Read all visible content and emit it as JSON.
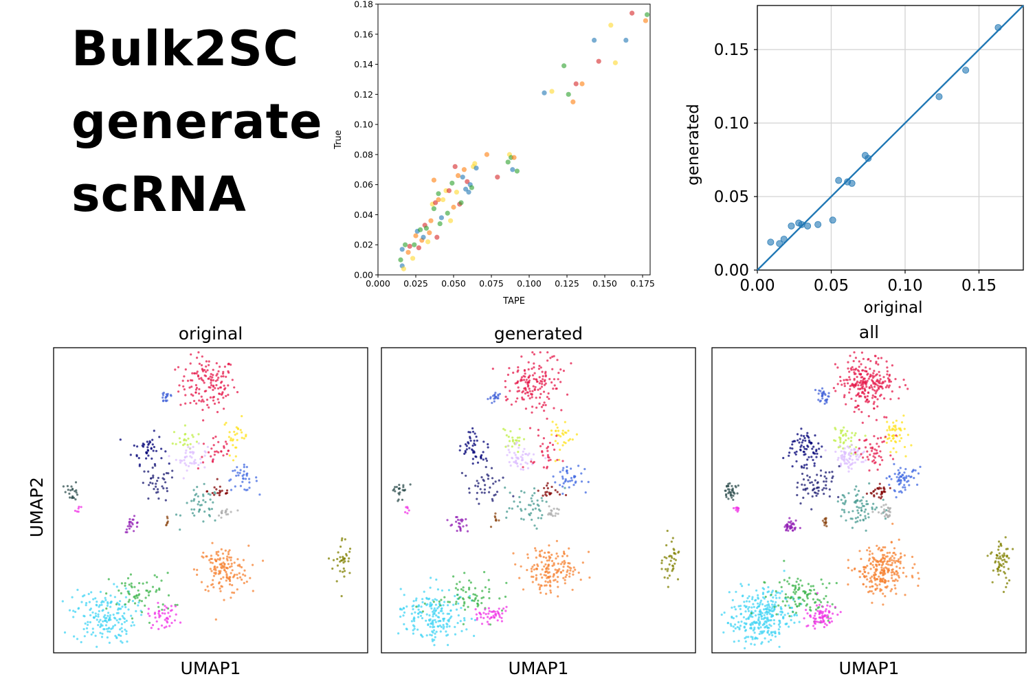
{
  "title_lines": [
    "Bulk2SC",
    "generate",
    "scRNA"
  ],
  "chart_data": [
    {
      "id": "tape",
      "type": "scatter",
      "xlabel": "TAPE",
      "ylabel": "True",
      "xlim": [
        0,
        0.18
      ],
      "ylim": [
        0,
        0.18
      ],
      "xticks": [
        0.0,
        0.025,
        0.05,
        0.075,
        0.1,
        0.125,
        0.15,
        0.175
      ],
      "xticklabels": [
        "0.000",
        "0.025",
        "0.050",
        "0.075",
        "0.100",
        "0.125",
        "0.150",
        "0.175"
      ],
      "yticks": [
        0.0,
        0.02,
        0.04,
        0.06,
        0.08,
        0.1,
        0.12,
        0.14,
        0.16,
        0.18
      ],
      "yticklabels": [
        "0.00",
        "0.02",
        "0.04",
        "0.06",
        "0.08",
        "0.10",
        "0.12",
        "0.14",
        "0.16",
        "0.18"
      ],
      "grid": false,
      "points": [
        {
          "x": 0.015,
          "y": 0.01,
          "c": "#2ca02c"
        },
        {
          "x": 0.016,
          "y": 0.006,
          "c": "#1f77b4"
        },
        {
          "x": 0.017,
          "y": 0.004,
          "c": "#ffd92f"
        },
        {
          "x": 0.016,
          "y": 0.017,
          "c": "#1f77b4"
        },
        {
          "x": 0.018,
          "y": 0.02,
          "c": "#2ca02c"
        },
        {
          "x": 0.02,
          "y": 0.015,
          "c": "#ff7f0e"
        },
        {
          "x": 0.021,
          "y": 0.019,
          "c": "#d62728"
        },
        {
          "x": 0.023,
          "y": 0.011,
          "c": "#ffd92f"
        },
        {
          "x": 0.024,
          "y": 0.02,
          "c": "#2ca02c"
        },
        {
          "x": 0.025,
          "y": 0.026,
          "c": "#ff7f0e"
        },
        {
          "x": 0.026,
          "y": 0.029,
          "c": "#1f77b4"
        },
        {
          "x": 0.027,
          "y": 0.018,
          "c": "#d62728"
        },
        {
          "x": 0.028,
          "y": 0.03,
          "c": "#2ca02c"
        },
        {
          "x": 0.029,
          "y": 0.023,
          "c": "#ff7f0e"
        },
        {
          "x": 0.03,
          "y": 0.025,
          "c": "#1f77b4"
        },
        {
          "x": 0.031,
          "y": 0.033,
          "c": "#d62728"
        },
        {
          "x": 0.032,
          "y": 0.031,
          "c": "#2ca02c"
        },
        {
          "x": 0.033,
          "y": 0.022,
          "c": "#ffd92f"
        },
        {
          "x": 0.034,
          "y": 0.028,
          "c": "#ff7f0e"
        },
        {
          "x": 0.035,
          "y": 0.036,
          "c": "#ff7f0e"
        },
        {
          "x": 0.036,
          "y": 0.047,
          "c": "#ffd92f"
        },
        {
          "x": 0.037,
          "y": 0.044,
          "c": "#2ca02c"
        },
        {
          "x": 0.037,
          "y": 0.063,
          "c": "#ff7f0e"
        },
        {
          "x": 0.038,
          "y": 0.048,
          "c": "#d62728"
        },
        {
          "x": 0.039,
          "y": 0.025,
          "c": "#d62728"
        },
        {
          "x": 0.04,
          "y": 0.05,
          "c": "#ff7f0e"
        },
        {
          "x": 0.04,
          "y": 0.054,
          "c": "#2ca02c"
        },
        {
          "x": 0.041,
          "y": 0.034,
          "c": "#2ca02c"
        },
        {
          "x": 0.042,
          "y": 0.038,
          "c": "#1f77b4"
        },
        {
          "x": 0.043,
          "y": 0.05,
          "c": "#ffd92f"
        },
        {
          "x": 0.045,
          "y": 0.056,
          "c": "#ffd92f"
        },
        {
          "x": 0.046,
          "y": 0.041,
          "c": "#2ca02c"
        },
        {
          "x": 0.047,
          "y": 0.056,
          "c": "#d62728"
        },
        {
          "x": 0.048,
          "y": 0.036,
          "c": "#ffd92f"
        },
        {
          "x": 0.049,
          "y": 0.061,
          "c": "#2ca02c"
        },
        {
          "x": 0.05,
          "y": 0.045,
          "c": "#ff7f0e"
        },
        {
          "x": 0.051,
          "y": 0.072,
          "c": "#d62728"
        },
        {
          "x": 0.052,
          "y": 0.055,
          "c": "#ffd92f"
        },
        {
          "x": 0.053,
          "y": 0.066,
          "c": "#ff7f0e"
        },
        {
          "x": 0.054,
          "y": 0.047,
          "c": "#d62728"
        },
        {
          "x": 0.055,
          "y": 0.048,
          "c": "#2ca02c"
        },
        {
          "x": 0.056,
          "y": 0.065,
          "c": "#1f77b4"
        },
        {
          "x": 0.057,
          "y": 0.07,
          "c": "#ff7f0e"
        },
        {
          "x": 0.058,
          "y": 0.057,
          "c": "#1f77b4"
        },
        {
          "x": 0.059,
          "y": 0.062,
          "c": "#d62728"
        },
        {
          "x": 0.06,
          "y": 0.055,
          "c": "#1f77b4"
        },
        {
          "x": 0.061,
          "y": 0.06,
          "c": "#1f77b4"
        },
        {
          "x": 0.062,
          "y": 0.058,
          "c": "#2ca02c"
        },
        {
          "x": 0.063,
          "y": 0.072,
          "c": "#ffd92f"
        },
        {
          "x": 0.064,
          "y": 0.074,
          "c": "#ffd92f"
        },
        {
          "x": 0.065,
          "y": 0.071,
          "c": "#1f77b4"
        },
        {
          "x": 0.072,
          "y": 0.08,
          "c": "#ff7f0e"
        },
        {
          "x": 0.079,
          "y": 0.065,
          "c": "#d62728"
        },
        {
          "x": 0.086,
          "y": 0.075,
          "c": "#2ca02c"
        },
        {
          "x": 0.087,
          "y": 0.08,
          "c": "#ffd92f"
        },
        {
          "x": 0.088,
          "y": 0.078,
          "c": "#2ca02c"
        },
        {
          "x": 0.089,
          "y": 0.07,
          "c": "#1f77b4"
        },
        {
          "x": 0.09,
          "y": 0.078,
          "c": "#ff7f0e"
        },
        {
          "x": 0.092,
          "y": 0.069,
          "c": "#2ca02c"
        },
        {
          "x": 0.11,
          "y": 0.121,
          "c": "#1f77b4"
        },
        {
          "x": 0.115,
          "y": 0.122,
          "c": "#ffd92f"
        },
        {
          "x": 0.123,
          "y": 0.139,
          "c": "#2ca02c"
        },
        {
          "x": 0.126,
          "y": 0.12,
          "c": "#2ca02c"
        },
        {
          "x": 0.129,
          "y": 0.115,
          "c": "#ff7f0e"
        },
        {
          "x": 0.131,
          "y": 0.127,
          "c": "#d62728"
        },
        {
          "x": 0.135,
          "y": 0.127,
          "c": "#ff7f0e"
        },
        {
          "x": 0.143,
          "y": 0.156,
          "c": "#1f77b4"
        },
        {
          "x": 0.146,
          "y": 0.142,
          "c": "#d62728"
        },
        {
          "x": 0.154,
          "y": 0.166,
          "c": "#ffd92f"
        },
        {
          "x": 0.157,
          "y": 0.141,
          "c": "#ffd92f"
        },
        {
          "x": 0.164,
          "y": 0.156,
          "c": "#1f77b4"
        },
        {
          "x": 0.168,
          "y": 0.174,
          "c": "#d62728"
        },
        {
          "x": 0.177,
          "y": 0.169,
          "c": "#ff7f0e"
        },
        {
          "x": 0.178,
          "y": 0.173,
          "c": "#2ca02c"
        }
      ]
    },
    {
      "id": "orig_vs_gen",
      "type": "scatter",
      "xlabel": "original",
      "ylabel": "generated",
      "xlim": [
        0,
        0.18
      ],
      "ylim": [
        0,
        0.18
      ],
      "xticks": [
        0.0,
        0.05,
        0.1,
        0.15
      ],
      "xticklabels": [
        "0.00",
        "0.05",
        "0.10",
        "0.15"
      ],
      "yticks": [
        0.0,
        0.05,
        0.1,
        0.15
      ],
      "yticklabels": [
        "0.00",
        "0.05",
        "0.10",
        "0.15"
      ],
      "grid": true,
      "identity_line": true,
      "color": "#1f77b4",
      "points": [
        {
          "x": 0.009,
          "y": 0.019
        },
        {
          "x": 0.015,
          "y": 0.018
        },
        {
          "x": 0.018,
          "y": 0.021
        },
        {
          "x": 0.023,
          "y": 0.03
        },
        {
          "x": 0.028,
          "y": 0.032
        },
        {
          "x": 0.03,
          "y": 0.031
        },
        {
          "x": 0.034,
          "y": 0.03
        },
        {
          "x": 0.041,
          "y": 0.031
        },
        {
          "x": 0.051,
          "y": 0.034
        },
        {
          "x": 0.055,
          "y": 0.061
        },
        {
          "x": 0.061,
          "y": 0.06
        },
        {
          "x": 0.064,
          "y": 0.059
        },
        {
          "x": 0.073,
          "y": 0.078
        },
        {
          "x": 0.075,
          "y": 0.076
        },
        {
          "x": 0.123,
          "y": 0.118
        },
        {
          "x": 0.141,
          "y": 0.136
        },
        {
          "x": 0.163,
          "y": 0.165
        }
      ]
    },
    {
      "type": "scatter",
      "kind": "umap",
      "panels": [
        {
          "id": "original",
          "title": "original",
          "xlabel": "UMAP1",
          "ylabel": "UMAP2",
          "size_factor": 0.7
        },
        {
          "id": "generated",
          "title": "generated",
          "xlabel": "UMAP1",
          "ylabel": "",
          "size_factor": 0.75
        },
        {
          "id": "all",
          "title": "all",
          "xlabel": "UMAP1",
          "ylabel": "",
          "size_factor": 1.2
        }
      ],
      "xlim": [
        0,
        1
      ],
      "ylim": [
        0,
        1
      ],
      "clusters": [
        {
          "cx": 0.49,
          "cy": 0.88,
          "sx": 0.045,
          "sy": 0.045,
          "n": 200,
          "color": "#e6194b"
        },
        {
          "cx": 0.36,
          "cy": 0.84,
          "sx": 0.012,
          "sy": 0.012,
          "n": 25,
          "color": "#4363d8"
        },
        {
          "cx": 0.3,
          "cy": 0.67,
          "sx": 0.025,
          "sy": 0.025,
          "n": 60,
          "color": "#000075"
        },
        {
          "cx": 0.42,
          "cy": 0.7,
          "sx": 0.02,
          "sy": 0.02,
          "n": 30,
          "color": "#bfef45"
        },
        {
          "cx": 0.44,
          "cy": 0.64,
          "sx": 0.025,
          "sy": 0.02,
          "n": 60,
          "color": "#dcbeff"
        },
        {
          "cx": 0.58,
          "cy": 0.71,
          "sx": 0.02,
          "sy": 0.03,
          "n": 40,
          "color": "#ffe119"
        },
        {
          "cx": 0.6,
          "cy": 0.57,
          "sx": 0.025,
          "sy": 0.02,
          "n": 50,
          "color": "#4169e1"
        },
        {
          "cx": 0.52,
          "cy": 0.66,
          "sx": 0.03,
          "sy": 0.03,
          "n": 40,
          "color": "#e6194b"
        },
        {
          "cx": 0.53,
          "cy": 0.53,
          "sx": 0.02,
          "sy": 0.012,
          "n": 25,
          "color": "#800000"
        },
        {
          "cx": 0.33,
          "cy": 0.55,
          "sx": 0.03,
          "sy": 0.03,
          "n": 50,
          "color": "#191970"
        },
        {
          "cx": 0.47,
          "cy": 0.48,
          "sx": 0.03,
          "sy": 0.03,
          "n": 60,
          "color": "#469990"
        },
        {
          "cx": 0.55,
          "cy": 0.46,
          "sx": 0.015,
          "sy": 0.01,
          "n": 20,
          "color": "#a9a9a9"
        },
        {
          "cx": 0.06,
          "cy": 0.53,
          "sx": 0.01,
          "sy": 0.015,
          "n": 30,
          "color": "#2f4f4f"
        },
        {
          "cx": 0.08,
          "cy": 0.47,
          "sx": 0.006,
          "sy": 0.006,
          "n": 8,
          "color": "#f032e6"
        },
        {
          "cx": 0.25,
          "cy": 0.42,
          "sx": 0.012,
          "sy": 0.012,
          "n": 30,
          "color": "#911eb4"
        },
        {
          "cx": 0.36,
          "cy": 0.43,
          "sx": 0.006,
          "sy": 0.01,
          "n": 10,
          "color": "#8b4513"
        },
        {
          "cx": 0.54,
          "cy": 0.27,
          "sx": 0.04,
          "sy": 0.04,
          "n": 200,
          "color": "#f58231"
        },
        {
          "cx": 0.92,
          "cy": 0.3,
          "sx": 0.015,
          "sy": 0.04,
          "n": 50,
          "color": "#808000"
        },
        {
          "cx": 0.16,
          "cy": 0.12,
          "sx": 0.05,
          "sy": 0.045,
          "n": 250,
          "color": "#42d4f4"
        },
        {
          "cx": 0.28,
          "cy": 0.19,
          "sx": 0.05,
          "sy": 0.035,
          "n": 90,
          "color": "#3cb44b"
        },
        {
          "cx": 0.35,
          "cy": 0.12,
          "sx": 0.025,
          "sy": 0.02,
          "n": 60,
          "color": "#f032e6"
        }
      ]
    }
  ]
}
